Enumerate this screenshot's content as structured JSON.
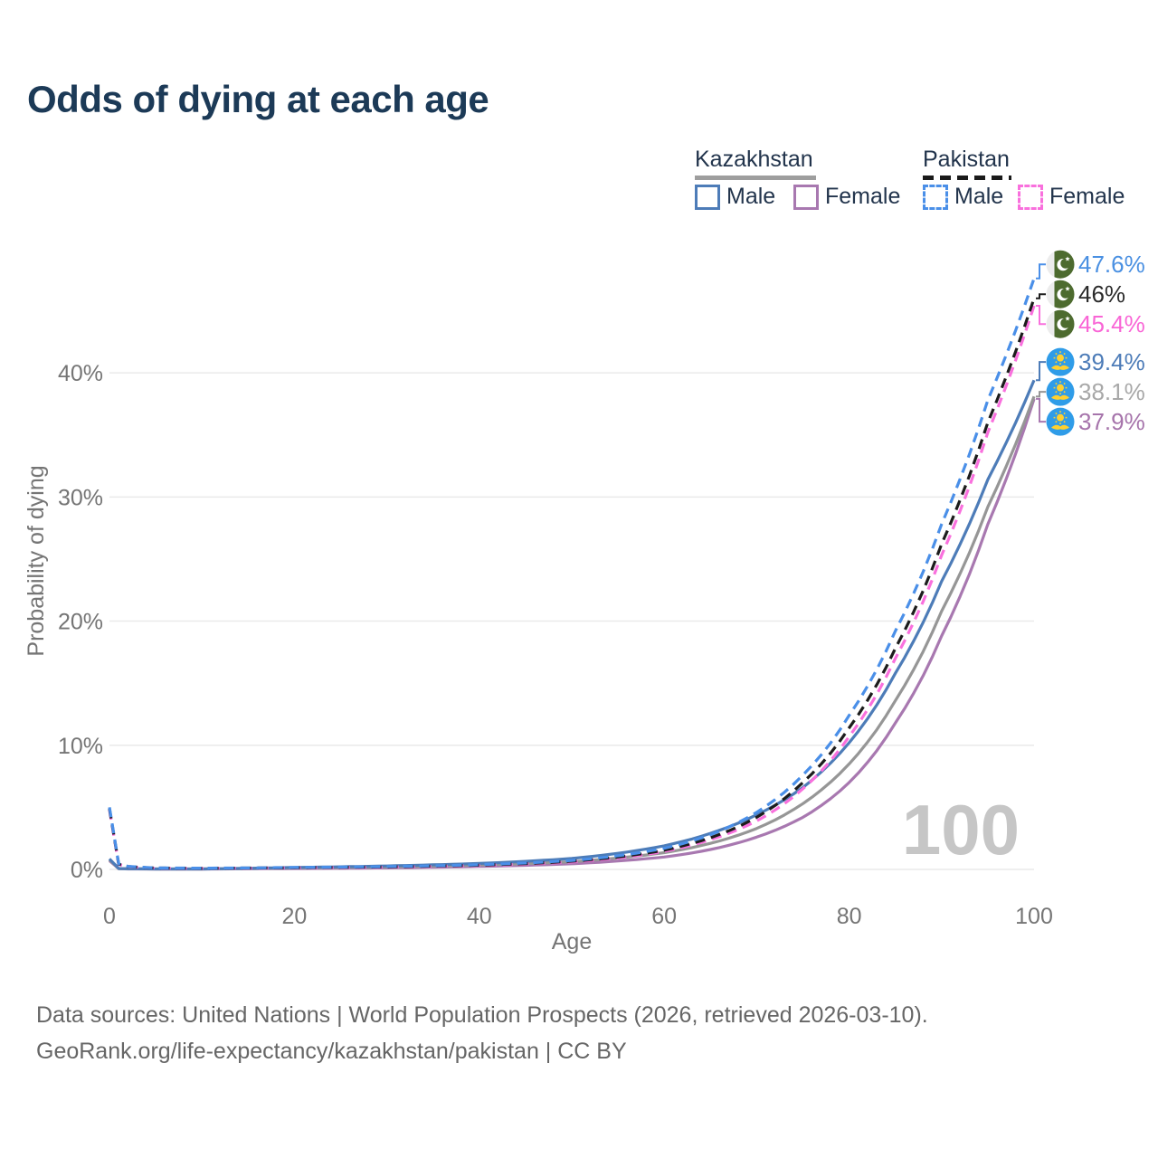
{
  "title": "Odds of dying at each age",
  "watermark": "100",
  "footer": {
    "line1": "Data sources: United Nations | World Population Prospects (2026, retrieved 2026-03-10).",
    "line2": "GeoRank.org/life-expectancy/kazakhstan/pakistan | CC BY"
  },
  "legend": {
    "kazakhstan": {
      "title": "Kazakhstan",
      "male_label": "Male",
      "female_label": "Female"
    },
    "pakistan": {
      "title": "Pakistan",
      "male_label": "Male",
      "female_label": "Female"
    }
  },
  "colors": {
    "title_text": "#1c3a57",
    "legend_text": "#22344c",
    "axis_text": "#757575",
    "gridline": "#eaeaea",
    "watermark": "#c6c6c6",
    "footer_text": "#666666",
    "kazakhstan_underline": "#9e9e9e",
    "pakistan_underline": "#1a1a1a",
    "pakistan_flag_green": "#4d6b2f",
    "pakistan_flag_white": "#ececec",
    "kazakhstan_flag_blue": "#2f9ce8",
    "kazakhstan_flag_gold": "#ffd02e"
  },
  "chart_data": {
    "type": "line",
    "title": "Odds of dying at each age",
    "xlabel": "Age",
    "ylabel": "Probability of dying",
    "xlim": [
      0,
      100
    ],
    "ylim": [
      0,
      48
    ],
    "x_ticks": [
      0,
      20,
      40,
      60,
      80,
      100
    ],
    "y_ticks": [
      0,
      10,
      20,
      30,
      40
    ],
    "y_tick_suffix": "%",
    "grid": "horizontal",
    "legend_position": "top-right",
    "ages": [
      0,
      1,
      2,
      5,
      10,
      15,
      20,
      25,
      30,
      35,
      40,
      45,
      50,
      55,
      60,
      65,
      70,
      75,
      80,
      85,
      90,
      95,
      100
    ],
    "series": [
      {
        "id": "kazakhstan-female",
        "country": "Kazakhstan",
        "sex": "Female",
        "dash": "solid",
        "flag": "kazakhstan",
        "color": "#a878b0",
        "label_color": "#a674ab",
        "end_label": "37.9%",
        "end_value": 37.9,
        "values": [
          0.7,
          0.055,
          0.04,
          0.03,
          0.03,
          0.05,
          0.07,
          0.09,
          0.12,
          0.17,
          0.24,
          0.33,
          0.45,
          0.68,
          1.0,
          1.6,
          2.6,
          4.2,
          7.0,
          11.8,
          18.8,
          27.8,
          37.9
        ]
      },
      {
        "id": "kazakhstan-total",
        "country": "Kazakhstan",
        "sex": "Both",
        "dash": "solid",
        "flag": "kazakhstan",
        "color": "#969696",
        "label_color": "#a8a8a8",
        "end_label": "38.1%",
        "end_value": 38.1,
        "values": [
          0.78,
          0.06,
          0.045,
          0.035,
          0.035,
          0.07,
          0.12,
          0.15,
          0.2,
          0.27,
          0.36,
          0.47,
          0.62,
          0.92,
          1.35,
          2.1,
          3.3,
          5.3,
          8.5,
          13.6,
          20.8,
          29.2,
          38.1
        ]
      },
      {
        "id": "kazakhstan-male",
        "country": "Kazakhstan",
        "sex": "Male",
        "dash": "solid",
        "flag": "kazakhstan",
        "color": "#4d7cb8",
        "label_color": "#4d7cb8",
        "end_label": "39.4%",
        "end_value": 39.4,
        "values": [
          0.85,
          0.07,
          0.05,
          0.04,
          0.04,
          0.09,
          0.16,
          0.21,
          0.28,
          0.37,
          0.48,
          0.65,
          0.88,
          1.3,
          1.9,
          2.9,
          4.4,
          6.6,
          10.2,
          15.8,
          23.2,
          31.4,
          39.4
        ]
      },
      {
        "id": "pakistan-female",
        "country": "Pakistan",
        "sex": "Female",
        "dash": "dashed",
        "flag": "pakistan",
        "color": "#f970dd",
        "label_color": "#f966d6",
        "end_label": "45.4%",
        "end_value": 45.4,
        "values": [
          4.8,
          0.4,
          0.22,
          0.1,
          0.085,
          0.1,
          0.13,
          0.15,
          0.18,
          0.24,
          0.31,
          0.43,
          0.6,
          0.92,
          1.45,
          2.4,
          3.9,
          6.5,
          10.7,
          17.0,
          25.3,
          35.2,
          45.4
        ]
      },
      {
        "id": "pakistan-total",
        "country": "Pakistan",
        "sex": "Both",
        "dash": "dashed",
        "flag": "pakistan",
        "color": "#1c1c1c",
        "label_color": "#2b2b2b",
        "end_label": "46%",
        "end_value": 46,
        "values": [
          4.9,
          0.42,
          0.23,
          0.11,
          0.09,
          0.11,
          0.14,
          0.17,
          0.2,
          0.26,
          0.34,
          0.47,
          0.66,
          1.0,
          1.55,
          2.55,
          4.2,
          7.0,
          11.4,
          17.8,
          26.2,
          36.0,
          46.0
        ]
      },
      {
        "id": "pakistan-male",
        "country": "Pakistan",
        "sex": "Male",
        "dash": "dashed",
        "flag": "pakistan",
        "color": "#4a8fe8",
        "label_color": "#4a90e2",
        "end_label": "47.6%",
        "end_value": 47.6,
        "values": [
          5.0,
          0.45,
          0.25,
          0.12,
          0.1,
          0.12,
          0.16,
          0.19,
          0.23,
          0.29,
          0.38,
          0.52,
          0.72,
          1.1,
          1.7,
          2.8,
          4.6,
          7.6,
          12.4,
          19.2,
          27.8,
          37.8,
          47.6
        ]
      }
    ]
  }
}
